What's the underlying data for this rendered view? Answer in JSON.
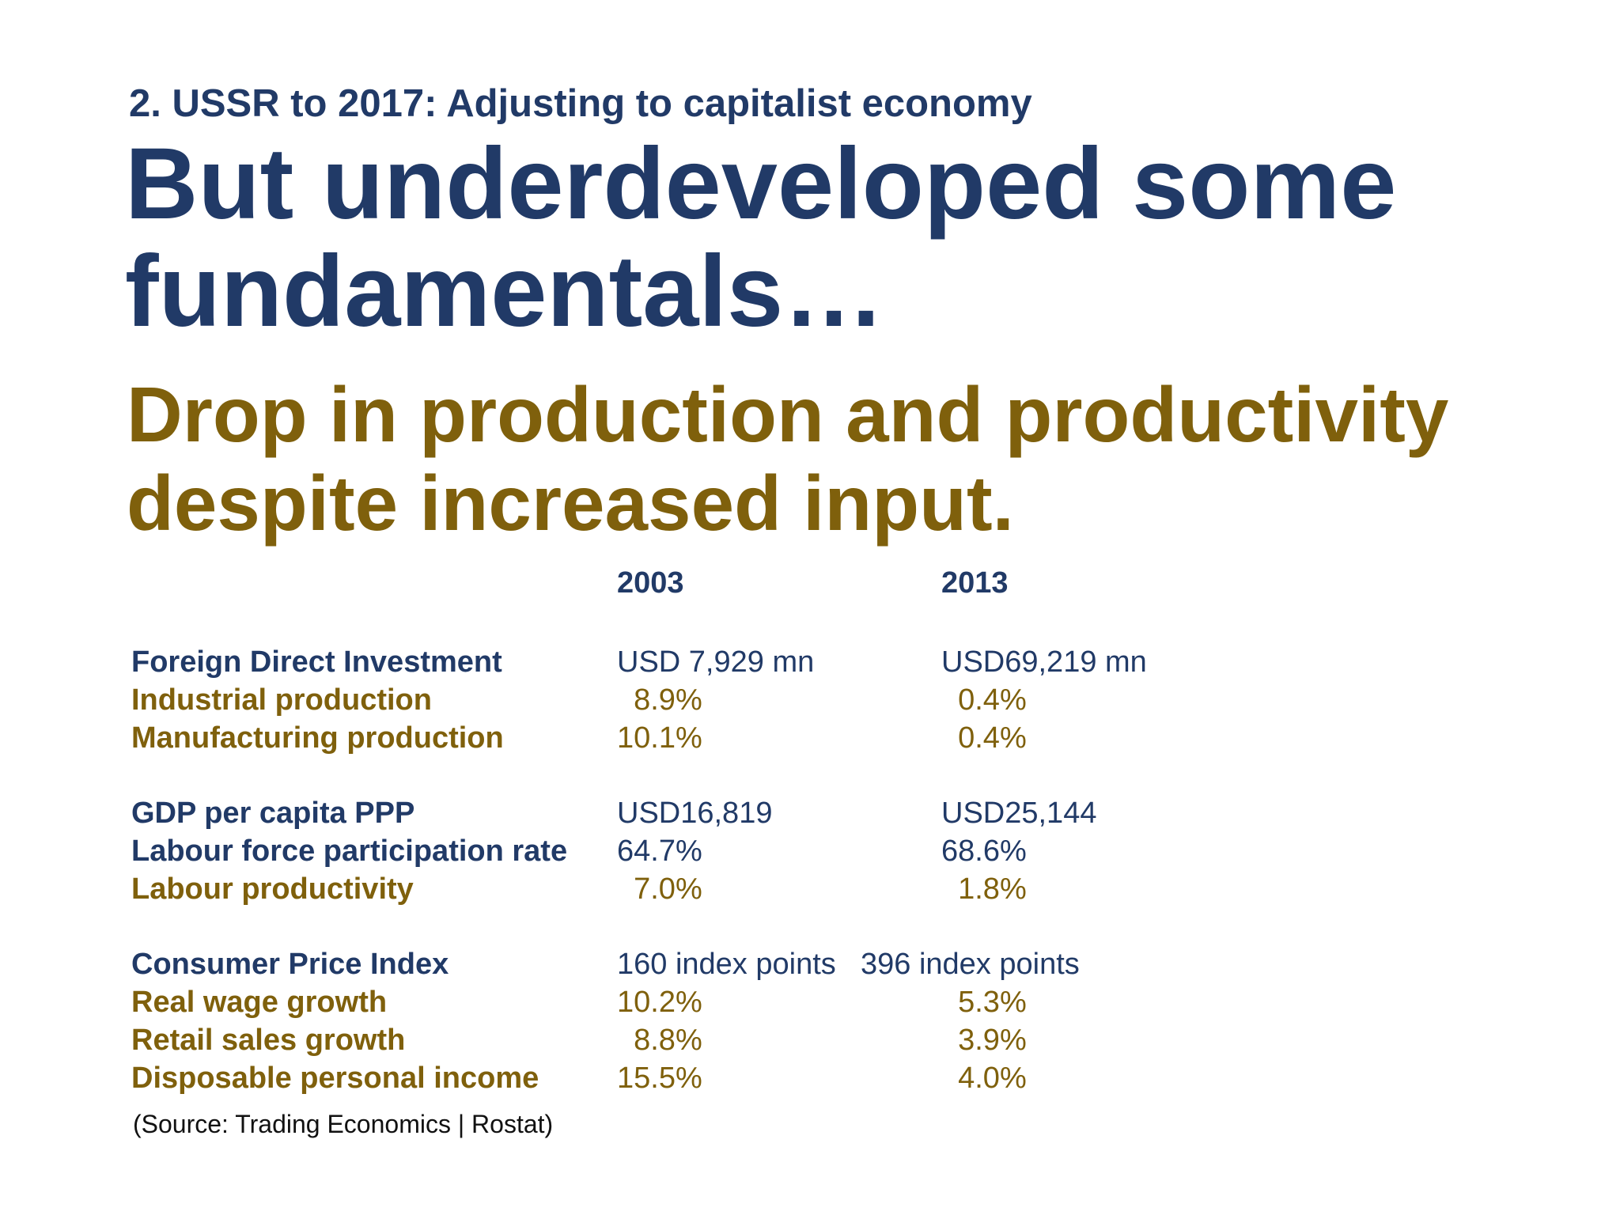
{
  "section_label": "2. USSR to 2017: Adjusting to capitalist economy",
  "headline": {
    "line1": "But underdeveloped some",
    "line2": "fundamentals…"
  },
  "subhead": {
    "line1": "Drop in production and productivity",
    "line2": "despite increased input."
  },
  "colors": {
    "blue": "#213a67",
    "gold": "#7f600c"
  },
  "table": {
    "years": [
      "2003",
      "2013"
    ],
    "rows": [
      {
        "label": "Foreign Direct Investment",
        "v2003": "USD 7,929 mn",
        "v2013": "USD69,219 mn",
        "color": "blue"
      },
      {
        "label": "Industrial production",
        "v2003": "  8.9%",
        "v2013": "  0.4%",
        "color": "gold"
      },
      {
        "label": "Manufacturing production",
        "v2003": "10.1%",
        "v2013": "  0.4%",
        "color": "gold"
      },
      {
        "label": "GDP per capita PPP",
        "v2003": "USD16,819",
        "v2013": "USD25,144",
        "color": "blue"
      },
      {
        "label": "Labour force participation rate",
        "v2003": "64.7%",
        "v2013": "68.6%",
        "color": "blue"
      },
      {
        "label": "Labour productivity",
        "v2003": "  7.0%",
        "v2013": "  1.8%",
        "color": "gold"
      },
      {
        "label": "Consumer Price Index",
        "v2003": "160 index points",
        "v2013": "396 index points",
        "color": "blue"
      },
      {
        "label": "Real wage growth",
        "v2003": "10.2%",
        "v2013": "  5.3%",
        "color": "gold"
      },
      {
        "label": "Retail sales growth",
        "v2003": "  8.8%",
        "v2013": "  3.9%",
        "color": "gold"
      },
      {
        "label": "Disposable personal income",
        "v2003": "15.5%",
        "v2013": "  4.0%",
        "color": "gold"
      }
    ]
  },
  "source": "(Source: Trading Economics | Rostat)"
}
